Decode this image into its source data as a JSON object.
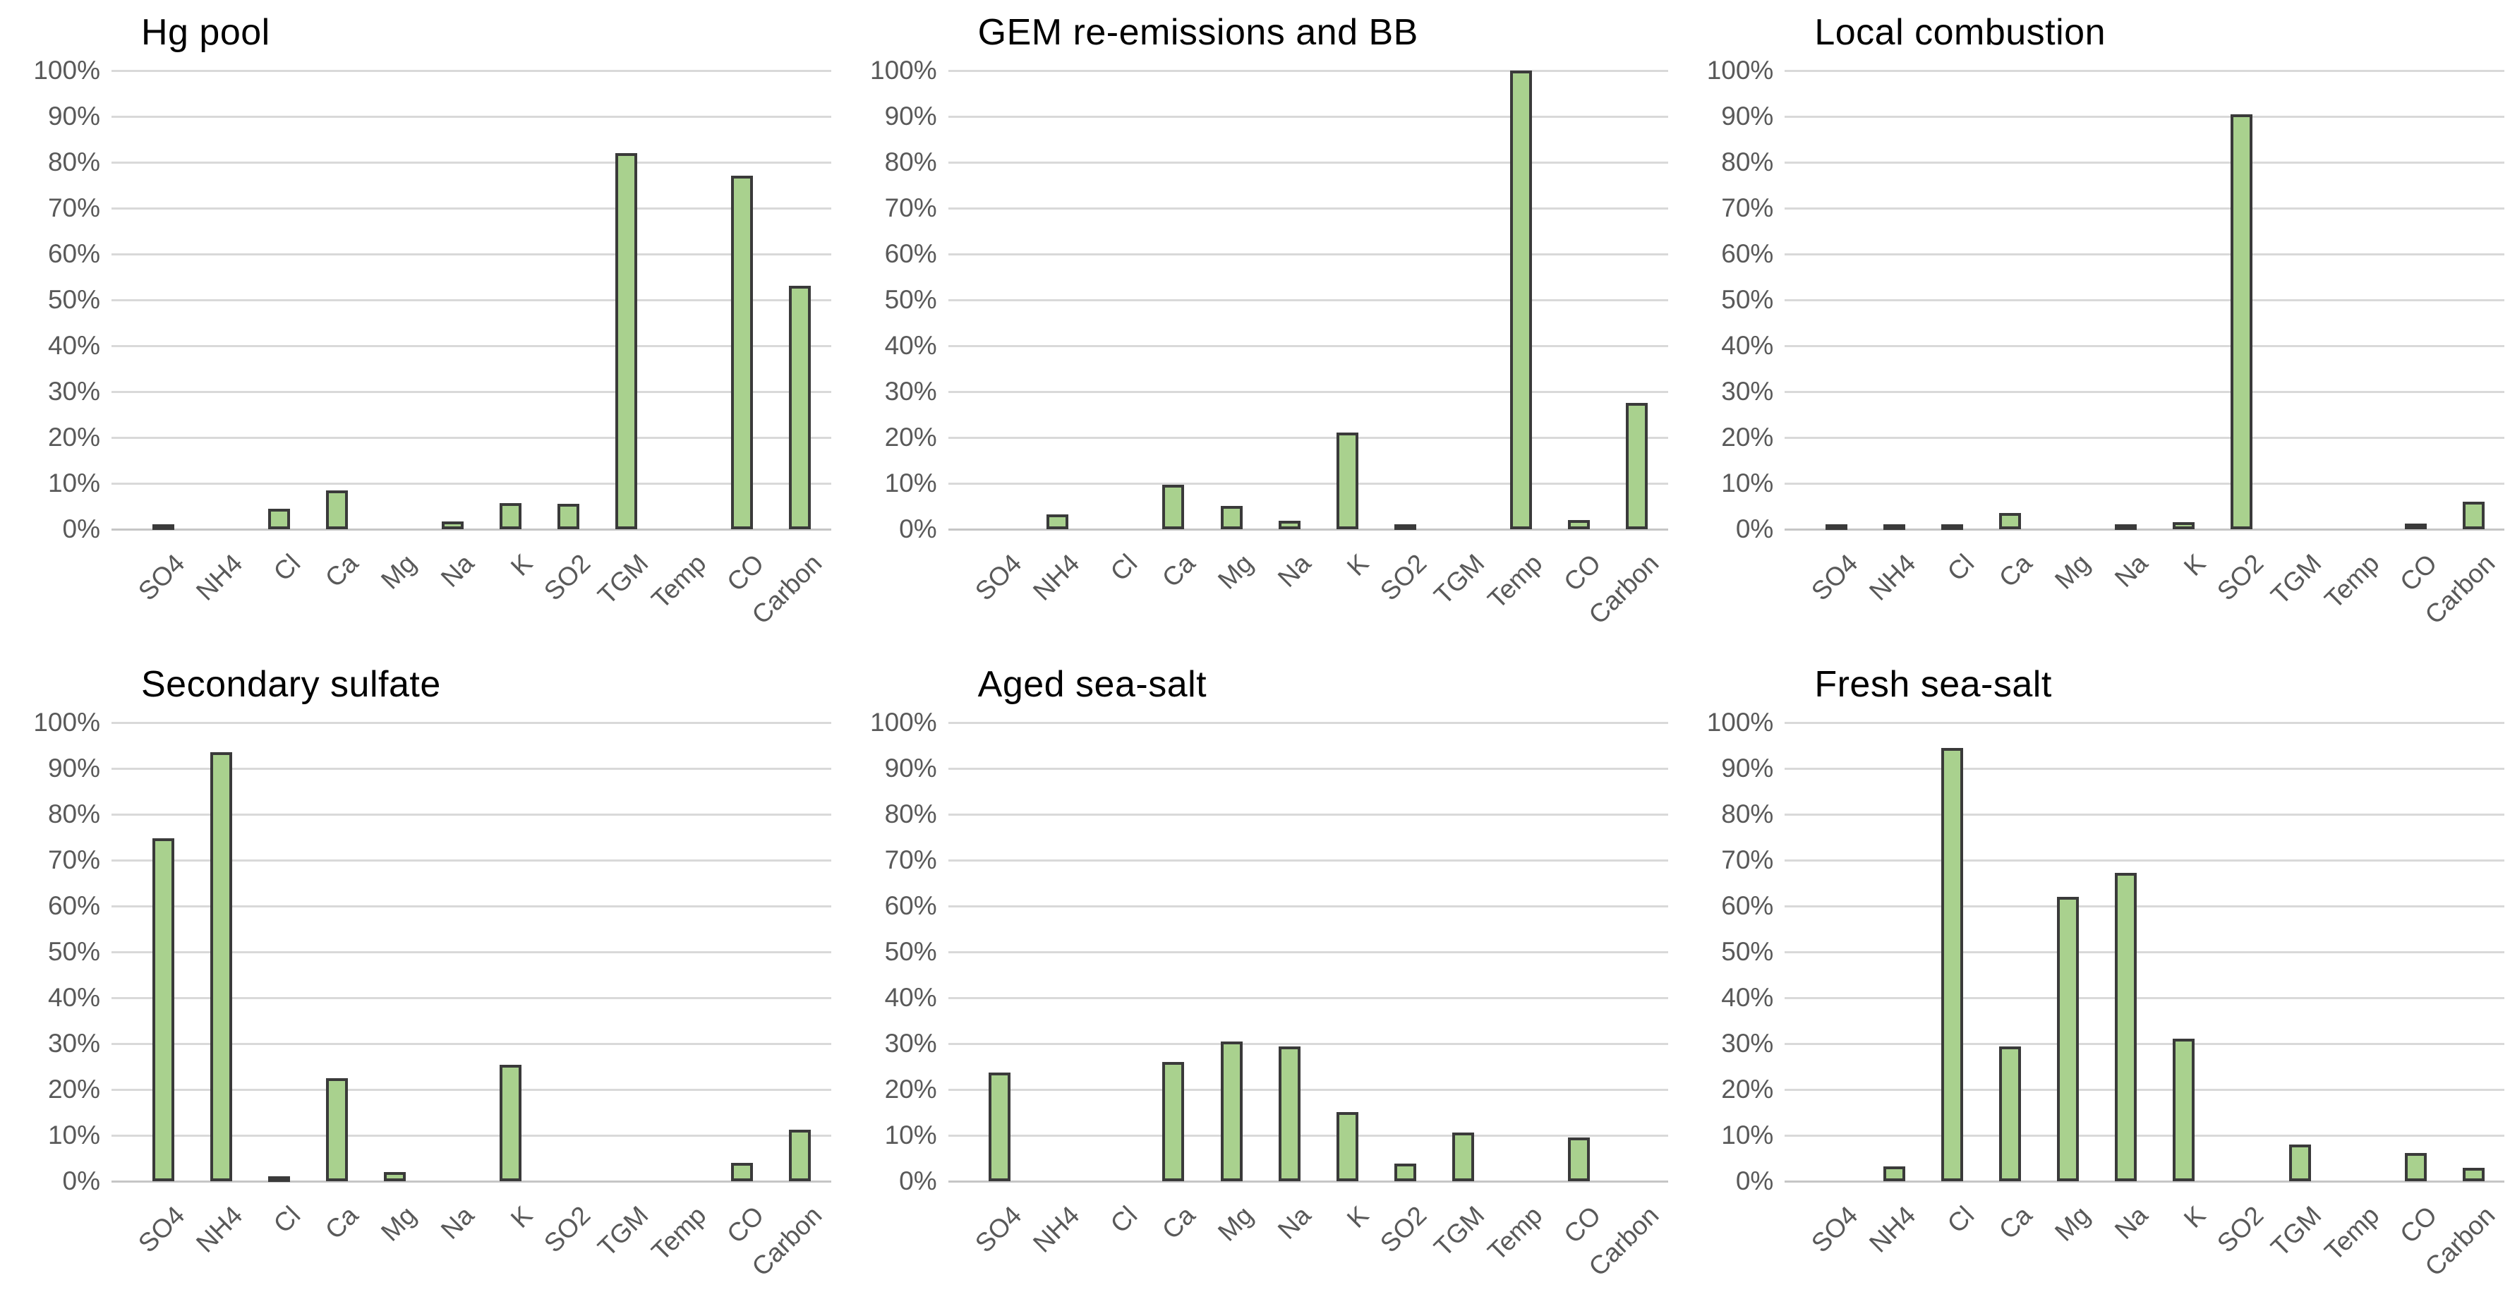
{
  "styles": {
    "background": "#ffffff",
    "bar_fill": "#a9d18e",
    "bar_border": "#3a3a3a",
    "gridline": "#d9d9d9",
    "axis_line": "#c6c6c6",
    "tick_label_color": "#595959",
    "title_color": "#000000"
  },
  "axis": {
    "ytick_labels": [
      "0%",
      "10%",
      "20%",
      "30%",
      "40%",
      "50%",
      "60%",
      "70%",
      "80%",
      "90%",
      "100%"
    ]
  },
  "chart_data": [
    {
      "type": "bar",
      "title": "Hg pool",
      "categories": [
        "SO4",
        "NH4",
        "Cl",
        "Ca",
        "Mg",
        "Na",
        "K",
        "SO2",
        "TGM",
        "Temp",
        "CO",
        "Carbon"
      ],
      "values": [
        1,
        0,
        4.5,
        8.5,
        0,
        1.7,
        5.7,
        5.5,
        82,
        0,
        77,
        53
      ],
      "xlabel": "",
      "ylabel": "",
      "ylim": [
        0,
        100
      ],
      "ytick_step": 10,
      "ytick_suffix": "%",
      "grid": true,
      "legend": false
    },
    {
      "type": "bar",
      "title": "GEM re-emissions and BB",
      "categories": [
        "SO4",
        "NH4",
        "Cl",
        "Ca",
        "Mg",
        "Na",
        "K",
        "SO2",
        "TGM",
        "Temp",
        "CO",
        "Carbon"
      ],
      "values": [
        0,
        3.3,
        0,
        9.7,
        5,
        1.8,
        21,
        0.5,
        0,
        100,
        2,
        27.5
      ],
      "xlabel": "",
      "ylabel": "",
      "ylim": [
        0,
        100
      ],
      "ytick_step": 10,
      "ytick_suffix": "%",
      "grid": true,
      "legend": false
    },
    {
      "type": "bar",
      "title": "Local combustion",
      "categories": [
        "SO4",
        "NH4",
        "Cl",
        "Ca",
        "Mg",
        "Na",
        "K",
        "SO2",
        "TGM",
        "Temp",
        "CO",
        "Carbon"
      ],
      "values": [
        1,
        0.4,
        0.4,
        3.6,
        0,
        0.6,
        1.6,
        90.5,
        0,
        0,
        1.2,
        6
      ],
      "xlabel": "",
      "ylabel": "",
      "ylim": [
        0,
        100
      ],
      "ytick_step": 10,
      "ytick_suffix": "%",
      "grid": true,
      "legend": false
    },
    {
      "type": "bar",
      "title": "Secondary sulfate",
      "categories": [
        "SO4",
        "NH4",
        "Cl",
        "Ca",
        "Mg",
        "Na",
        "K",
        "SO2",
        "TGM",
        "Temp",
        "CO",
        "Carbon"
      ],
      "values": [
        74.7,
        93.5,
        0.7,
        22.4,
        2,
        0,
        25.4,
        0,
        0,
        0,
        4,
        11.3
      ],
      "xlabel": "",
      "ylabel": "",
      "ylim": [
        0,
        100
      ],
      "ytick_step": 10,
      "ytick_suffix": "%",
      "grid": true,
      "legend": false
    },
    {
      "type": "bar",
      "title": "Aged sea-salt",
      "categories": [
        "SO4",
        "NH4",
        "Cl",
        "Ca",
        "Mg",
        "Na",
        "K",
        "SO2",
        "TGM",
        "Temp",
        "CO",
        "Carbon"
      ],
      "values": [
        23.7,
        0,
        0,
        26,
        30.4,
        29.4,
        15,
        3.9,
        10.6,
        0,
        9.6,
        0
      ],
      "xlabel": "",
      "ylabel": "",
      "ylim": [
        0,
        100
      ],
      "ytick_step": 10,
      "ytick_suffix": "%",
      "grid": true,
      "legend": false
    },
    {
      "type": "bar",
      "title": "Fresh sea-salt",
      "categories": [
        "SO4",
        "NH4",
        "Cl",
        "Ca",
        "Mg",
        "Na",
        "K",
        "SO2",
        "TGM",
        "Temp",
        "CO",
        "Carbon"
      ],
      "values": [
        0,
        3.2,
        94.4,
        29.4,
        62,
        67.2,
        31,
        0,
        8,
        0,
        6.2,
        2.9
      ],
      "xlabel": "",
      "ylabel": "",
      "ylim": [
        0,
        100
      ],
      "ytick_step": 10,
      "ytick_suffix": "%",
      "grid": true,
      "legend": false
    }
  ]
}
